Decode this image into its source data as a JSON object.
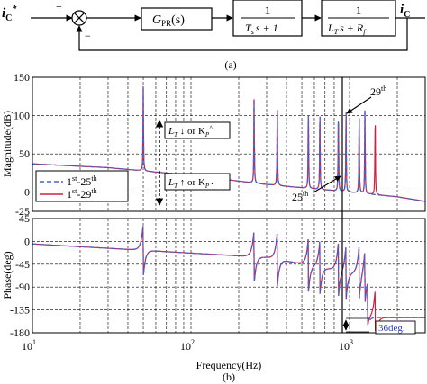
{
  "block_diagram": {
    "input_label": "i",
    "input_sub": "C",
    "input_sup": "*",
    "plus_sign": "+",
    "minus_sign": "−",
    "controller_label": "G",
    "controller_sub": "PR",
    "controller_arg": "(s)",
    "delay_num": "1",
    "delay_den_a": "T",
    "delay_den_sub": "s",
    "delay_den_b": "s + 1",
    "plant_num": "1",
    "plant_den_a": "L",
    "plant_den_sub": "T",
    "plant_den_b": "s + R",
    "plant_den_sub2": "f",
    "output_label": "i",
    "output_sub": "C",
    "caption": "(a)"
  },
  "chart_data": [
    {
      "type": "line",
      "panel": "magnitude",
      "ylabel": "Magnitude(dB)",
      "ylim": [
        -25,
        150
      ],
      "yticks": [
        "150",
        "100",
        "50",
        "0",
        "-25"
      ],
      "xscale": "log",
      "xlim": [
        10,
        3000
      ],
      "grid": true,
      "legend_position": "left",
      "series": [
        {
          "name": "1st-25th",
          "color": "#4a5fd0",
          "dash": true
        },
        {
          "name": "1st-29th",
          "color": "#d0203c",
          "dash": false
        }
      ],
      "resonance_harmonics": [
        1,
        5,
        7,
        11,
        13,
        17,
        19,
        23,
        25,
        29
      ],
      "baseline_db": [
        [
          10,
          37
        ],
        [
          30,
          32
        ],
        [
          100,
          22
        ],
        [
          300,
          10
        ],
        [
          1000,
          0
        ],
        [
          2000,
          -6
        ],
        [
          3000,
          -12
        ]
      ],
      "annotations": {
        "arrow_up": "L",
        "arrow_up_sub": "T",
        "arrow_up_mid": " ↓ or K",
        "arrow_up_sub2": "P",
        "arrow_up_sup": "^",
        "arrow_down": "L",
        "arrow_down_sub": "T",
        "arrow_down_mid": " ↑ or K",
        "arrow_down_sub2": "P",
        "arrow_down_sup": "⌄",
        "h29": "29",
        "h29_sup": "th",
        "h25": "25",
        "h25_sup": "th"
      },
      "legend": [
        {
          "pre": "1",
          "sup1": "st",
          "mid": "-25",
          "sup2": "th"
        },
        {
          "pre": "1",
          "sup1": "st",
          "mid": "-29",
          "sup2": "th"
        }
      ]
    },
    {
      "type": "line",
      "panel": "phase",
      "ylabel": "Phase(deg)",
      "ylim": [
        -180,
        45
      ],
      "yticks": [
        "45",
        "0",
        "-45",
        "-90",
        "-135",
        "-180"
      ],
      "xscale": "log",
      "xlim": [
        10,
        3000
      ],
      "xlabel": "Frequency(Hz)",
      "xticks": [
        {
          "base": "10",
          "exp": "1"
        },
        {
          "base": "10",
          "exp": "2"
        },
        {
          "base": "10",
          "exp": "3"
        }
      ],
      "grid": true,
      "annotations": {
        "margin_label": "36deg."
      }
    }
  ],
  "caption_b": "(b)"
}
